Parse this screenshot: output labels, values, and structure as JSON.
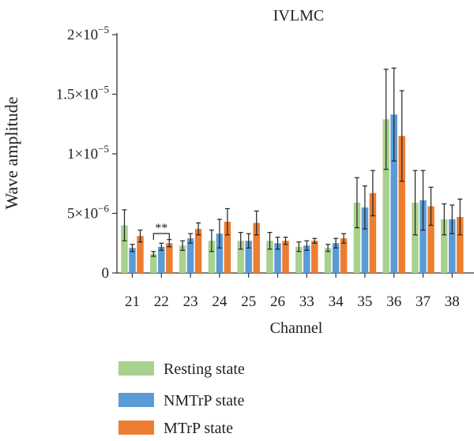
{
  "chart_data": {
    "type": "bar",
    "title": "IVLMC",
    "xlabel": "Channel",
    "ylabel": "Wave amplitude",
    "ylim": [
      0,
      2e-05
    ],
    "yticks": [
      {
        "value": 0,
        "mantissa": "0",
        "exp": ""
      },
      {
        "value": 5e-06,
        "mantissa": "5×10",
        "exp": "−6"
      },
      {
        "value": 1e-05,
        "mantissa": "1×10",
        "exp": "−5"
      },
      {
        "value": 1.5e-05,
        "mantissa": "1.5×10",
        "exp": "−5"
      },
      {
        "value": 2e-05,
        "mantissa": "2×10",
        "exp": "−5"
      }
    ],
    "categories": [
      "21",
      "22",
      "23",
      "24",
      "25",
      "26",
      "33",
      "34",
      "35",
      "36",
      "37",
      "38"
    ],
    "series": [
      {
        "name": "Resting state",
        "color": "#a9d18e",
        "values": [
          4e-06,
          1.6e-06,
          2.3e-06,
          2.7e-06,
          2.7e-06,
          2.7e-06,
          2.2e-06,
          2.1e-06,
          5.9e-06,
          1.29e-05,
          5.9e-06,
          4.5e-06
        ],
        "errors": [
          1.3e-06,
          2e-07,
          4e-07,
          9e-07,
          7e-07,
          7e-07,
          4e-07,
          3e-07,
          2.1e-06,
          4.2e-06,
          2.7e-06,
          1.3e-06
        ]
      },
      {
        "name": "NMTrP state",
        "color": "#5b9bd5",
        "values": [
          2.1e-06,
          2.2e-06,
          2.9e-06,
          3.3e-06,
          2.7e-06,
          2.5e-06,
          2.3e-06,
          2.5e-06,
          5.5e-06,
          1.33e-05,
          6.1e-06,
          4.5e-06
        ],
        "errors": [
          3e-07,
          3e-07,
          4e-07,
          1.2e-06,
          6e-07,
          5e-07,
          4e-07,
          4e-07,
          1.8e-06,
          3.9e-06,
          2.5e-06,
          1.2e-06
        ]
      },
      {
        "name": "MTrP state",
        "color": "#ed7d31",
        "values": [
          3.1e-06,
          2.5e-06,
          3.7e-06,
          4.3e-06,
          4.2e-06,
          2.7e-06,
          2.7e-06,
          2.9e-06,
          6.7e-06,
          1.15e-05,
          5.6e-06,
          4.7e-06
        ],
        "errors": [
          5e-07,
          3e-07,
          5e-07,
          1.1e-06,
          1e-06,
          3e-07,
          2e-07,
          4e-07,
          1.9e-06,
          3.8e-06,
          1.6e-06,
          1.5e-06
        ]
      }
    ],
    "annotations": [
      {
        "text": "**",
        "category": "22"
      }
    ],
    "legend": "bottom",
    "grid": false
  }
}
